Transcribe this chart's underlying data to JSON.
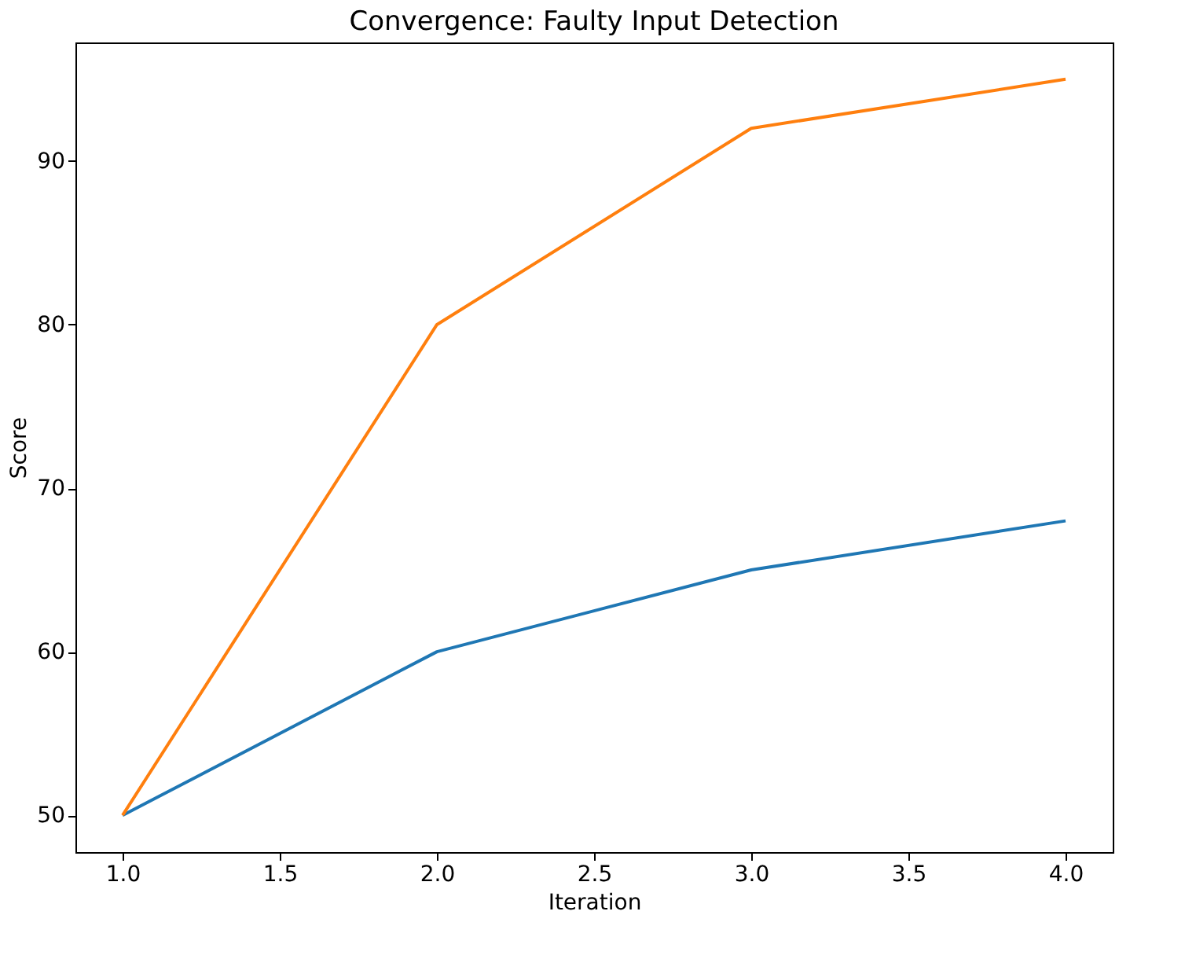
{
  "chart_data": {
    "type": "line",
    "title": "Convergence: Faulty Input Detection",
    "xlabel": "Iteration",
    "ylabel": "Score",
    "x": [
      1,
      2,
      3,
      4
    ],
    "series": [
      {
        "color": "#1f77b4",
        "values": [
          50,
          60,
          65,
          68
        ]
      },
      {
        "color": "#ff7f0e",
        "values": [
          50,
          80,
          92,
          95
        ]
      }
    ],
    "xlim": [
      0.85,
      4.15
    ],
    "ylim": [
      47.75,
      97.25
    ],
    "xticks": [
      {
        "value": 1,
        "label": "1.0"
      },
      {
        "value": 1.5,
        "label": "1.5"
      },
      {
        "value": 2,
        "label": "2.0"
      },
      {
        "value": 2.5,
        "label": "2.5"
      },
      {
        "value": 3,
        "label": "3.0"
      },
      {
        "value": 3.5,
        "label": "3.5"
      },
      {
        "value": 4,
        "label": "4.0"
      }
    ],
    "yticks": [
      50,
      60,
      70,
      80,
      90
    ],
    "grid": false,
    "legend": false,
    "marker": "none",
    "line_style": "solid"
  }
}
